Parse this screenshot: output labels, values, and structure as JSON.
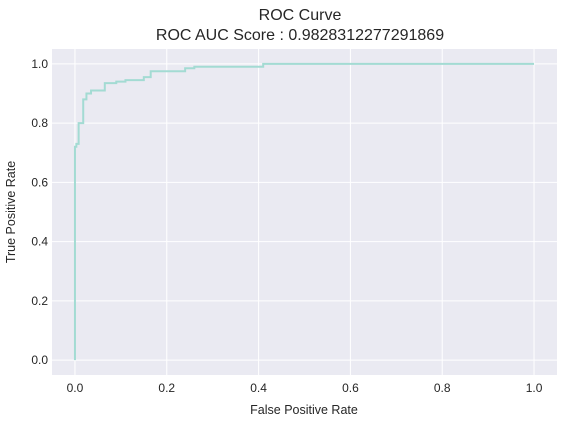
{
  "chart_data": {
    "type": "line",
    "title": "ROC Curve",
    "subtitle": "ROC AUC Score : 0.9828312277291869",
    "xlabel": "False Positive Rate",
    "ylabel": "True Positive Rate",
    "xlim": [
      -0.05,
      1.05
    ],
    "ylim": [
      -0.05,
      1.05
    ],
    "xticks": [
      0.0,
      0.2,
      0.4,
      0.6,
      0.8,
      1.0
    ],
    "yticks": [
      0.0,
      0.2,
      0.4,
      0.6,
      0.8,
      1.0
    ],
    "xtick_labels": [
      "0.0",
      "0.2",
      "0.4",
      "0.6",
      "0.8",
      "1.0"
    ],
    "ytick_labels": [
      "0.0",
      "0.2",
      "0.4",
      "0.6",
      "0.8",
      "1.0"
    ],
    "grid": true,
    "colors": {
      "background": "#eaeaf2",
      "grid": "#ffffff",
      "line": "#a3dbd3"
    },
    "series": [
      {
        "x": [
          0.0,
          0.0,
          0.003,
          0.003,
          0.008,
          0.008,
          0.018,
          0.018,
          0.025,
          0.025,
          0.035,
          0.035,
          0.065,
          0.065,
          0.09,
          0.09,
          0.11,
          0.11,
          0.15,
          0.15,
          0.165,
          0.165,
          0.24,
          0.24,
          0.26,
          0.26,
          0.41,
          0.41,
          1.0
        ],
        "y": [
          0.0,
          0.72,
          0.72,
          0.73,
          0.73,
          0.8,
          0.8,
          0.88,
          0.88,
          0.9,
          0.9,
          0.91,
          0.91,
          0.935,
          0.935,
          0.94,
          0.94,
          0.945,
          0.945,
          0.955,
          0.955,
          0.975,
          0.975,
          0.985,
          0.985,
          0.99,
          0.99,
          1.0,
          1.0
        ]
      }
    ]
  }
}
